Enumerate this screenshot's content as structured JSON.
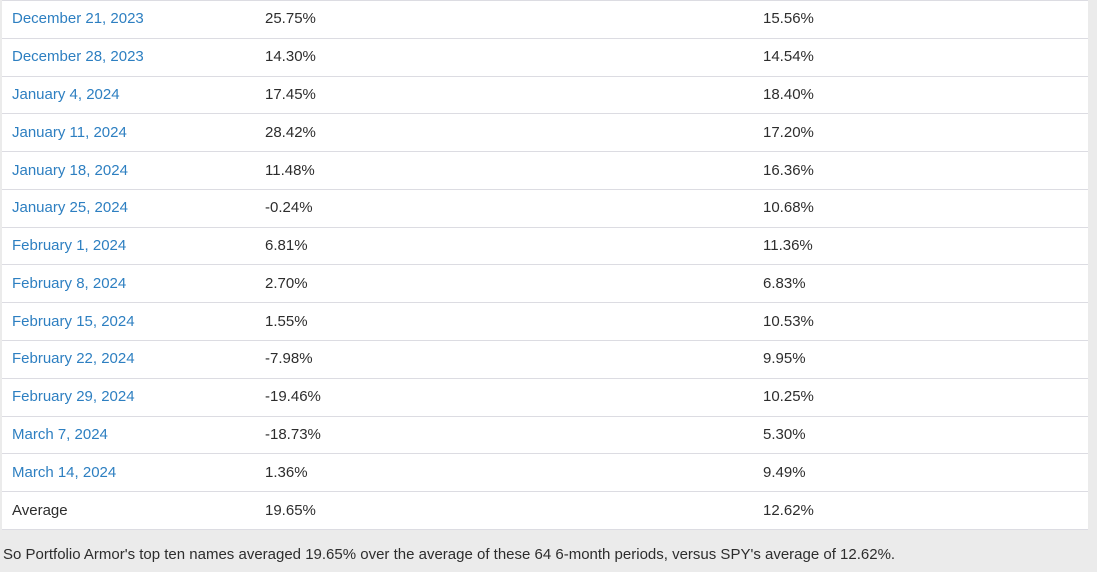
{
  "page": {
    "background_color": "#ebebeb",
    "link_color": "#2d7fc1",
    "text_color": "#2d2d2d",
    "border_color": "#dcdce2"
  },
  "table": {
    "rows": [
      {
        "date": "December 21, 2023",
        "top_ten_return": "25.75%",
        "spy_return": "15.56%"
      },
      {
        "date": "December 28, 2023",
        "top_ten_return": "14.30%",
        "spy_return": "14.54%"
      },
      {
        "date": "January 4, 2024",
        "top_ten_return": "17.45%",
        "spy_return": "18.40%"
      },
      {
        "date": "January 11, 2024",
        "top_ten_return": "28.42%",
        "spy_return": "17.20%"
      },
      {
        "date": "January 18, 2024",
        "top_ten_return": "11.48%",
        "spy_return": "16.36%"
      },
      {
        "date": "January 25, 2024",
        "top_ten_return": "-0.24%",
        "spy_return": "10.68%"
      },
      {
        "date": "February 1, 2024",
        "top_ten_return": "6.81%",
        "spy_return": "11.36%"
      },
      {
        "date": "February 8, 2024",
        "top_ten_return": "2.70%",
        "spy_return": "6.83%"
      },
      {
        "date": "February 15, 2024",
        "top_ten_return": "1.55%",
        "spy_return": "10.53%"
      },
      {
        "date": "February 22, 2024",
        "top_ten_return": "-7.98%",
        "spy_return": "9.95%"
      },
      {
        "date": "February 29, 2024",
        "top_ten_return": "-19.46%",
        "spy_return": "10.25%"
      },
      {
        "date": "March 7, 2024",
        "top_ten_return": "-18.73%",
        "spy_return": "5.30%"
      },
      {
        "date": "March 14, 2024",
        "top_ten_return": "1.36%",
        "spy_return": "9.49%"
      }
    ],
    "average_row": {
      "label": "Average",
      "top_ten_return": "19.65%",
      "spy_return": "12.62%"
    }
  },
  "footer": {
    "text": "So Portfolio Armor's top ten names averaged 19.65% over the average of these 64 6-month periods, versus SPY's average of 12.62%."
  }
}
